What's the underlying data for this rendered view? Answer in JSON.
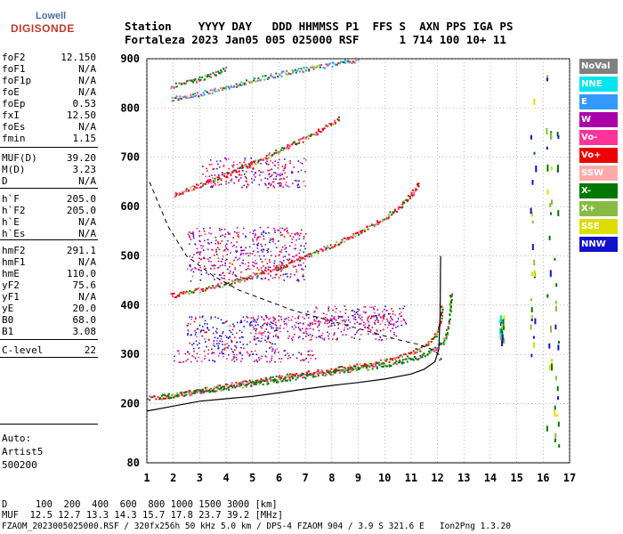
{
  "logo": {
    "top": "Lowell",
    "bottom": "DIGISONDE"
  },
  "header": {
    "line1": "Station    YYYY DAY   DDD HHMMSS P1  FFS S  AXN PPS IGA PS",
    "line2": "Fortaleza 2023 Jan05 005 025000 RSF      1 714 100 10+ 11"
  },
  "params": [
    {
      "name": "foF2",
      "value": "12.150"
    },
    {
      "name": "foF1",
      "value": "N/A"
    },
    {
      "name": "foF1p",
      "value": "N/A"
    },
    {
      "name": "foE",
      "value": "N/A"
    },
    {
      "name": "foEp",
      "value": "0.53"
    },
    {
      "name": "fxI",
      "value": "12.50"
    },
    {
      "name": "foEs",
      "value": "N/A"
    },
    {
      "name": "fmin",
      "value": "1.15"
    },
    {
      "name": "MUF(D)",
      "value": "39.20"
    },
    {
      "name": "M(D)",
      "value": "3.23"
    },
    {
      "name": "D",
      "value": "N/A"
    },
    {
      "name": "h`F",
      "value": "205.0"
    },
    {
      "name": "h`F2",
      "value": "205.0"
    },
    {
      "name": "h`E",
      "value": "N/A"
    },
    {
      "name": "h`Es",
      "value": "N/A"
    },
    {
      "name": "hmF2",
      "value": "291.1"
    },
    {
      "name": "hmF1",
      "value": "N/A"
    },
    {
      "name": "hmE",
      "value": "110.0"
    },
    {
      "name": "yF2",
      "value": "75.6"
    },
    {
      "name": "yF1",
      "value": "N/A"
    },
    {
      "name": "yE",
      "value": "20.0"
    },
    {
      "name": "B0",
      "value": "68.0"
    },
    {
      "name": "B1",
      "value": "3.08"
    },
    {
      "name": "C-level",
      "value": "22"
    }
  ],
  "auto": {
    "line1": "Auto:",
    "line2": "Artist5",
    "line3": "500200"
  },
  "legend": [
    {
      "label": "NoVal",
      "color": "#808080",
      "text_color": "#ffffff"
    },
    {
      "label": "NNE",
      "color": "#00e5ee",
      "text_color": "#ffffff"
    },
    {
      "label": "E",
      "color": "#3399ff",
      "text_color": "#ffffff"
    },
    {
      "label": "W",
      "color": "#aa00aa",
      "text_color": "#ffffff"
    },
    {
      "label": "Vo-",
      "color": "#ff3399",
      "text_color": "#ffffff"
    },
    {
      "label": "Vo+",
      "color": "#ee0000",
      "text_color": "#ffffff"
    },
    {
      "label": "SSW",
      "color": "#ffaaaa",
      "text_color": "#ffffff"
    },
    {
      "label": "X-",
      "color": "#007700",
      "text_color": "#ffffff"
    },
    {
      "label": "X+",
      "color": "#88bb44",
      "text_color": "#ffffff"
    },
    {
      "label": "SSE",
      "color": "#dddd00",
      "text_color": "#ffffff"
    },
    {
      "label": "NNW",
      "color": "#1111cc",
      "text_color": "#ffffff"
    }
  ],
  "chart_data": {
    "type": "scatter",
    "xlim": [
      1,
      17
    ],
    "ylim": [
      80,
      900
    ],
    "x_ticks": [
      "1",
      "2",
      "3",
      "4",
      "5",
      "6",
      "7",
      "8",
      "9",
      "10",
      "11",
      "12",
      "13",
      "14",
      "15",
      "16",
      "17"
    ],
    "y_ticks": [
      "80",
      "200",
      "300",
      "400",
      "500",
      "600",
      "700",
      "800",
      "900"
    ],
    "grid": true,
    "traces": [
      {
        "name": "o1",
        "color": "#ee0000",
        "x": [
          1.0,
          1.5,
          2.0,
          3.0,
          4.0,
          5.0,
          6.0,
          7.0,
          8.0,
          9.0,
          10.0,
          10.5,
          11.0,
          11.5,
          11.8,
          12.0,
          12.1,
          12.15
        ],
        "y": [
          212,
          214,
          218,
          228,
          238,
          246,
          255,
          263,
          270,
          278,
          288,
          295,
          305,
          318,
          332,
          348,
          370,
          400
        ]
      },
      {
        "name": "x1",
        "color": "#007700",
        "x": [
          1.5,
          2.0,
          3.0,
          4.0,
          5.0,
          6.0,
          7.0,
          8.0,
          9.0,
          10.0,
          11.0,
          11.5,
          12.0,
          12.3,
          12.45,
          12.5
        ],
        "y": [
          216,
          218,
          226,
          234,
          242,
          250,
          258,
          265,
          272,
          280,
          292,
          300,
          315,
          335,
          380,
          430
        ]
      },
      {
        "name": "o2",
        "color": "#ee0000",
        "x": [
          1.9,
          3.0,
          4.0,
          5.0,
          6.0,
          7.0,
          8.0,
          9.0,
          10.0,
          10.5,
          11.0,
          11.3
        ],
        "y": [
          420,
          432,
          445,
          460,
          478,
          500,
          522,
          548,
          578,
          598,
          625,
          650
        ]
      },
      {
        "name": "o3",
        "color": "#ee0000",
        "x": [
          2.0,
          3.0,
          4.0,
          5.0,
          6.0,
          7.0,
          7.5,
          8.0,
          8.3
        ],
        "y": [
          625,
          645,
          665,
          690,
          715,
          740,
          755,
          770,
          780
        ]
      },
      {
        "name": "o4",
        "color": "#3399ff",
        "x": [
          1.9,
          3.0,
          4.0,
          5.0,
          6.0,
          7.0,
          8.0,
          9.0
        ],
        "y": [
          820,
          830,
          842,
          858,
          870,
          880,
          890,
          900
        ]
      },
      {
        "name": "o5",
        "color": "#007700",
        "x": [
          1.9,
          3.0,
          3.5,
          4.0
        ],
        "y": [
          845,
          860,
          870,
          880
        ]
      }
    ],
    "spread_regions": [
      {
        "name": "spread-F1",
        "color": "#aa00aa",
        "xmin": 2.0,
        "xmax": 7.5,
        "ymin": 285,
        "ymax": 310
      },
      {
        "name": "spread-F2",
        "color": "#1111cc",
        "xmin": 2.5,
        "xmax": 6.0,
        "ymin": 310,
        "ymax": 380
      },
      {
        "name": "spread-F3",
        "color": "#aa00aa",
        "xmin": 5.0,
        "xmax": 10.5,
        "ymin": 330,
        "ymax": 380
      },
      {
        "name": "spread-F4",
        "color": "#aa00aa",
        "xmin": 7.0,
        "xmax": 10.8,
        "ymin": 360,
        "ymax": 400
      },
      {
        "name": "spread-F5",
        "color": "#aa00aa",
        "xmin": 2.5,
        "xmax": 7.0,
        "ymin": 450,
        "ymax": 560
      },
      {
        "name": "spread-F6",
        "color": "#aa00aa",
        "xmin": 3.0,
        "xmax": 7.0,
        "ymin": 640,
        "ymax": 700
      }
    ],
    "scattered_columns": [
      {
        "name": "col-14.4",
        "x": 14.4,
        "ymin": 330,
        "ymax": 380,
        "color": "#00e5ee"
      },
      {
        "name": "col-15.6",
        "x": 15.6,
        "ymin": 300,
        "ymax": 820,
        "color": "#1111cc"
      },
      {
        "name": "col-16.2",
        "x": 16.2,
        "ymin": 110,
        "ymax": 900,
        "color": "#007700"
      },
      {
        "name": "col-16.5",
        "x": 16.5,
        "ymin": 110,
        "ymax": 780,
        "color": "#88bb44"
      }
    ],
    "profile": {
      "x": [
        1.0,
        2.0,
        3.0,
        4.0,
        5.0,
        6.0,
        7.0,
        8.0,
        9.0,
        10.0,
        11.0,
        11.5,
        11.9,
        12.05,
        12.1,
        12.12
      ],
      "y": [
        185,
        195,
        205,
        210,
        215,
        222,
        230,
        237,
        243,
        250,
        260,
        270,
        285,
        310,
        380,
        500
      ]
    },
    "dashed": {
      "x": [
        1.1,
        1.8,
        2.5,
        3.5,
        4.5,
        5.5,
        6.5,
        7.5,
        8.5,
        9.5,
        10.5,
        11.3,
        11.8,
        12.1,
        12.15,
        11.9
      ],
      "y": [
        650,
        560,
        500,
        460,
        430,
        410,
        390,
        375,
        360,
        345,
        330,
        320,
        310,
        298,
        290,
        285
      ]
    }
  },
  "footer": {
    "line1": "D     100  200  400  600  800 1000 1500 3000 [km]",
    "line2": "MUF  12.5 12.7 13.3 14.3 15.7 17.8 23.7 39.2 [MHz]",
    "line3": "FZAOM_2023005025000.RSF / 320fx256h 50 kHz 5.0 km / DPS-4 FZAOM 904 / 3.9 S 321.6 E   Ion2Png 1.3.20"
  }
}
